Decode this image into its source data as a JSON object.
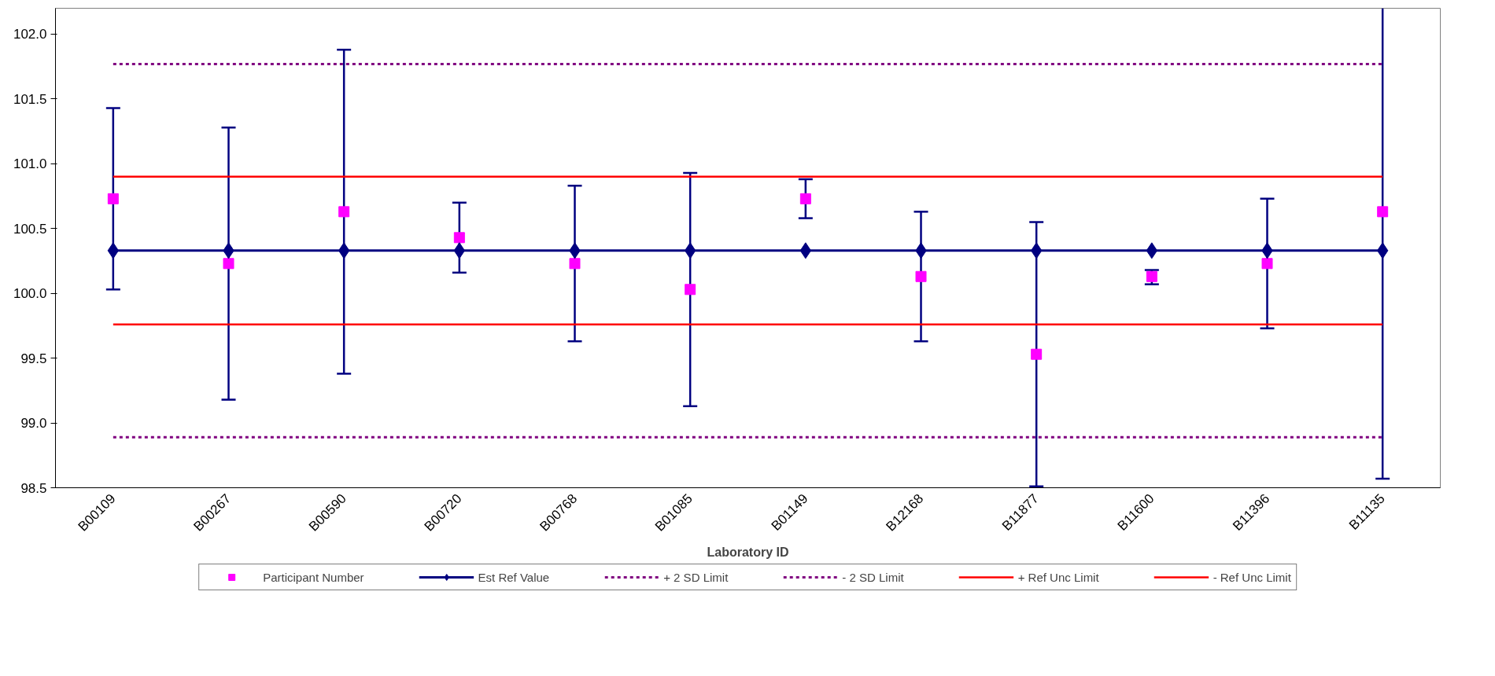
{
  "chart_data": {
    "type": "line",
    "xlabel": "Laboratory ID",
    "categories": [
      "B00109",
      "B00267",
      "B00590",
      "B00720",
      "B00768",
      "B01085",
      "B01149",
      "B12168",
      "B11877",
      "B11600",
      "B11396",
      "B11135"
    ],
    "series": [
      {
        "name": "Participant Number",
        "type": "scatter",
        "marker": "square",
        "color": "#ff00ff",
        "values": [
          100.73,
          100.23,
          100.63,
          100.43,
          100.23,
          100.03,
          100.73,
          100.13,
          99.53,
          100.13,
          100.23,
          100.63
        ],
        "errors": [
          [
            100.03,
            101.43
          ],
          [
            99.18,
            101.28
          ],
          [
            99.38,
            101.88
          ],
          [
            100.16,
            100.7
          ],
          [
            99.63,
            100.83
          ],
          [
            99.13,
            100.93
          ],
          [
            100.58,
            100.88
          ],
          [
            99.63,
            100.63
          ],
          [
            98.51,
            100.55
          ],
          [
            100.07,
            100.18
          ],
          [
            99.73,
            100.73
          ],
          [
            98.57,
            102.2
          ]
        ]
      },
      {
        "name": "Est Ref Value",
        "type": "line",
        "marker": "diamond",
        "line_style": "solid",
        "color": "#000080",
        "values": [
          100.33,
          100.33,
          100.33,
          100.33,
          100.33,
          100.33,
          100.33,
          100.33,
          100.33,
          100.33,
          100.33,
          100.33
        ]
      },
      {
        "name": "+ 2 SD Limit",
        "type": "line",
        "marker": "none",
        "line_style": "dashed",
        "color": "#800080",
        "values": [
          101.77,
          101.77,
          101.77,
          101.77,
          101.77,
          101.77,
          101.77,
          101.77,
          101.77,
          101.77,
          101.77,
          101.77
        ]
      },
      {
        "name": "- 2 SD Limit",
        "type": "line",
        "marker": "none",
        "line_style": "dashed",
        "color": "#800080",
        "values": [
          98.89,
          98.89,
          98.89,
          98.89,
          98.89,
          98.89,
          98.89,
          98.89,
          98.89,
          98.89,
          98.89,
          98.89
        ]
      },
      {
        "name": "+ Ref Unc Limit",
        "type": "line",
        "marker": "none",
        "line_style": "solid",
        "color": "#ff0000",
        "values": [
          100.9,
          100.9,
          100.9,
          100.9,
          100.9,
          100.9,
          100.9,
          100.9,
          100.9,
          100.9,
          100.9,
          100.9
        ]
      },
      {
        "name": "- Ref Unc Limit",
        "type": "line",
        "marker": "none",
        "line_style": "solid",
        "color": "#ff0000",
        "values": [
          99.76,
          99.76,
          99.76,
          99.76,
          99.76,
          99.76,
          99.76,
          99.76,
          99.76,
          99.76,
          99.76,
          99.76
        ]
      }
    ],
    "ylim": [
      98.5,
      102.2
    ],
    "yticks": [
      {
        "value": 98.5,
        "label": "98.5"
      },
      {
        "value": 99.0,
        "label": "99.0"
      },
      {
        "value": 99.5,
        "label": "99.5"
      },
      {
        "value": 100.0,
        "label": "100.0"
      },
      {
        "value": 100.5,
        "label": "100.5"
      },
      {
        "value": 101.0,
        "label": "101.0"
      },
      {
        "value": 101.5,
        "label": "101.5"
      },
      {
        "value": 102.0,
        "label": "102.0"
      }
    ],
    "grid": false,
    "legend": "bottom"
  }
}
